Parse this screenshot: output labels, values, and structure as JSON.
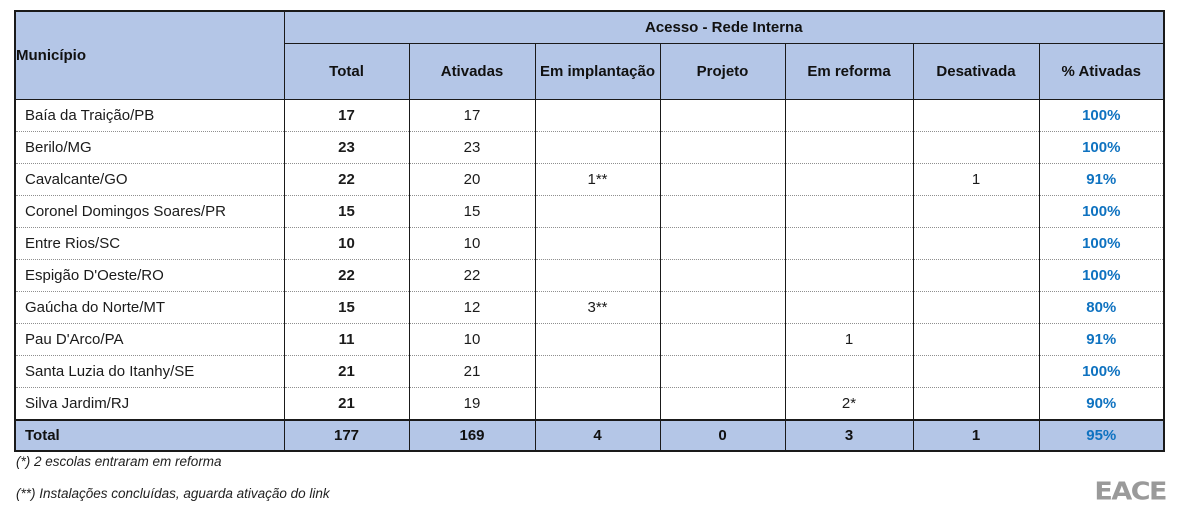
{
  "header": {
    "municipio_label": "Município",
    "group_label": "Acesso - Rede Interna",
    "columns": [
      "Total",
      "Ativadas",
      "Em implantação",
      "Projeto",
      "Em reforma",
      "Desativada",
      "% Ativadas"
    ]
  },
  "table": {
    "rows": [
      {
        "municipio": "Baía da Traição/PB",
        "total": "17",
        "ativadas": "17",
        "em_implantacao": "",
        "projeto": "",
        "em_reforma": "",
        "desativada": "",
        "pct_ativadas": "100%"
      },
      {
        "municipio": "Berilo/MG",
        "total": "23",
        "ativadas": "23",
        "em_implantacao": "",
        "projeto": "",
        "em_reforma": "",
        "desativada": "",
        "pct_ativadas": "100%"
      },
      {
        "municipio": "Cavalcante/GO",
        "total": "22",
        "ativadas": "20",
        "em_implantacao": "1**",
        "projeto": "",
        "em_reforma": "",
        "desativada": "1",
        "pct_ativadas": "91%"
      },
      {
        "municipio": "Coronel Domingos Soares/PR",
        "total": "15",
        "ativadas": "15",
        "em_implantacao": "",
        "projeto": "",
        "em_reforma": "",
        "desativada": "",
        "pct_ativadas": "100%"
      },
      {
        "municipio": "Entre Rios/SC",
        "total": "10",
        "ativadas": "10",
        "em_implantacao": "",
        "projeto": "",
        "em_reforma": "",
        "desativada": "",
        "pct_ativadas": "100%"
      },
      {
        "municipio": "Espigão D'Oeste/RO",
        "total": "22",
        "ativadas": "22",
        "em_implantacao": "",
        "projeto": "",
        "em_reforma": "",
        "desativada": "",
        "pct_ativadas": "100%"
      },
      {
        "municipio": "Gaúcha do Norte/MT",
        "total": "15",
        "ativadas": "12",
        "em_implantacao": "3**",
        "projeto": "",
        "em_reforma": "",
        "desativada": "",
        "pct_ativadas": "80%"
      },
      {
        "municipio": "Pau D'Arco/PA",
        "total": "11",
        "ativadas": "10",
        "em_implantacao": "",
        "projeto": "",
        "em_reforma": "1",
        "desativada": "",
        "pct_ativadas": "91%"
      },
      {
        "municipio": "Santa Luzia do Itanhy/SE",
        "total": "21",
        "ativadas": "21",
        "em_implantacao": "",
        "projeto": "",
        "em_reforma": "",
        "desativada": "",
        "pct_ativadas": "100%"
      },
      {
        "municipio": "Silva Jardim/RJ",
        "total": "21",
        "ativadas": "19",
        "em_implantacao": "",
        "projeto": "",
        "em_reforma": "2*",
        "desativada": "",
        "pct_ativadas": "90%"
      }
    ],
    "total_row": {
      "municipio": "Total",
      "total": "177",
      "ativadas": "169",
      "em_implantacao": "4",
      "projeto": "0",
      "em_reforma": "3",
      "desativada": "1",
      "pct_ativadas": "95%"
    }
  },
  "footnotes": {
    "fn1": "(*) 2 escolas entraram em reforma",
    "fn2": "(**) Instalações concluídas, aguarda ativação do link"
  },
  "logo_text": "EACE",
  "colors": {
    "header_bg": "#b4c6e7",
    "pct_blue": "#0e72c0"
  }
}
